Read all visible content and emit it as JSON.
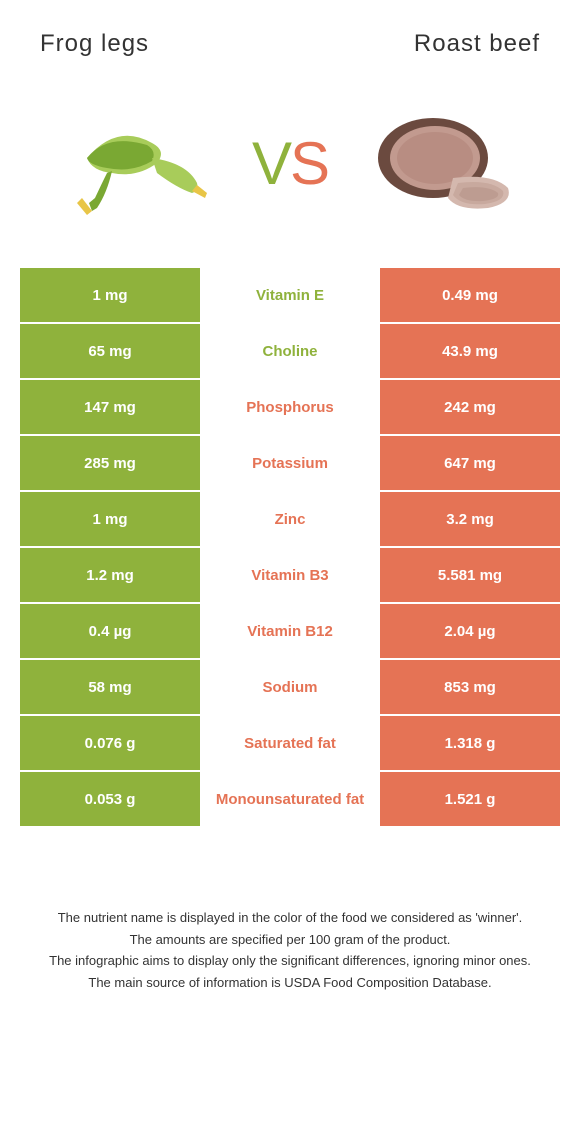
{
  "header": {
    "leftTitle": "Frog legs",
    "rightTitle": "Roast beef"
  },
  "hero": {
    "vsV": "V",
    "vsS": "S"
  },
  "colors": {
    "left": "#8fb23c",
    "right": "#e57355",
    "frogGreen": "#7aa833",
    "frogLight": "#a8cc5a",
    "beefOuter": "#6b4a3f",
    "beefInner": "#c29a8f",
    "beefSlice": "#d4b8ae"
  },
  "rows": [
    {
      "left": "1 mg",
      "mid": "Vitamin E",
      "right": "0.49 mg",
      "winner": "left"
    },
    {
      "left": "65 mg",
      "mid": "Choline",
      "right": "43.9 mg",
      "winner": "left"
    },
    {
      "left": "147 mg",
      "mid": "Phosphorus",
      "right": "242 mg",
      "winner": "right"
    },
    {
      "left": "285 mg",
      "mid": "Potassium",
      "right": "647 mg",
      "winner": "right"
    },
    {
      "left": "1 mg",
      "mid": "Zinc",
      "right": "3.2 mg",
      "winner": "right"
    },
    {
      "left": "1.2 mg",
      "mid": "Vitamin B3",
      "right": "5.581 mg",
      "winner": "right"
    },
    {
      "left": "0.4 µg",
      "mid": "Vitamin B12",
      "right": "2.04 µg",
      "winner": "right"
    },
    {
      "left": "58 mg",
      "mid": "Sodium",
      "right": "853 mg",
      "winner": "right"
    },
    {
      "left": "0.076 g",
      "mid": "Saturated fat",
      "right": "1.318 g",
      "winner": "right"
    },
    {
      "left": "0.053 g",
      "mid": "Monounsaturated fat",
      "right": "1.521 g",
      "winner": "right"
    }
  ],
  "footer": {
    "l1": "The nutrient name is displayed in the color of the food we considered as 'winner'.",
    "l2": "The amounts are specified per 100 gram of the product.",
    "l3": "The infographic aims to display only the significant differences, ignoring minor ones.",
    "l4": "The main source of information is USDA Food Composition Database."
  }
}
